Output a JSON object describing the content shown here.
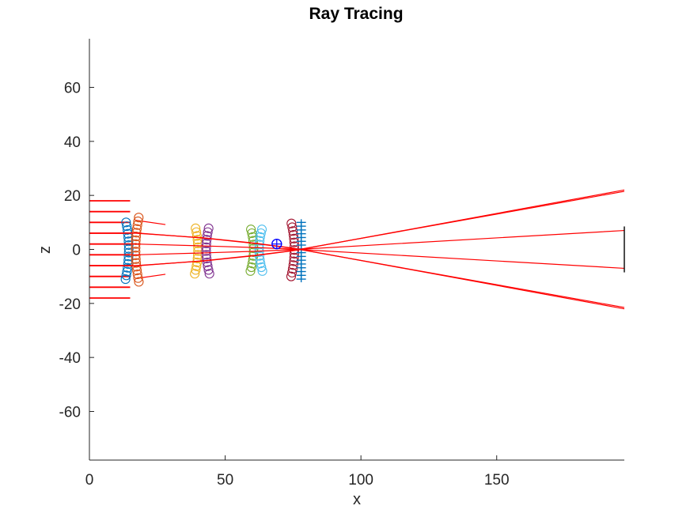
{
  "chart_data": {
    "type": "line",
    "title": "Ray Tracing",
    "xlabel": "x",
    "ylabel": "z",
    "xlim": [
      0,
      197
    ],
    "ylim": [
      -78,
      78
    ],
    "xticks": [
      0,
      50,
      100,
      150
    ],
    "yticks": [
      -60,
      -40,
      -20,
      0,
      20,
      40,
      60
    ],
    "grid": false,
    "colors": {
      "ray": "#ff0000",
      "lens1_front": "#0072bd",
      "lens1_back": "#d95319",
      "lens2_front": "#edb120",
      "lens2_back": "#7e2f8e",
      "lens3_front": "#77ac30",
      "lens3_back": "#4dbeee",
      "lens4_front": "#a2142f",
      "image_plane_marks": "#0072bd",
      "focus_marker": "#0000ff",
      "detector": "#000000"
    },
    "incoming_rays": [
      {
        "z": 18,
        "x_end": 15
      },
      {
        "z": 14,
        "x_end": 15
      },
      {
        "z": 10,
        "x_end": 15
      },
      {
        "z": 6,
        "x_end": 15
      },
      {
        "z": 2,
        "x_end": 15
      },
      {
        "z": -2,
        "x_end": 15
      },
      {
        "z": -6,
        "x_end": 15
      },
      {
        "z": -10,
        "x_end": 15
      },
      {
        "z": -14,
        "x_end": 15
      },
      {
        "z": -18,
        "x_end": 15
      }
    ],
    "deflected_rays": [
      {
        "x": [
          17,
          28
        ],
        "z": [
          10.8,
          9.2
        ]
      },
      {
        "x": [
          17,
          28
        ],
        "z": [
          -10.8,
          -9.2
        ]
      }
    ],
    "traced_rays": [
      {
        "x": [
          0,
          17,
          42,
          61,
          75,
          197
        ],
        "z": [
          6,
          6.1,
          4.2,
          2.2,
          0.4,
          -21.5
        ]
      },
      {
        "x": [
          0,
          17,
          42,
          61,
          75,
          197
        ],
        "z": [
          -6,
          -6.1,
          -4.2,
          -2.2,
          -0.4,
          21.5
        ]
      },
      {
        "x": [
          0,
          17,
          42,
          61,
          75,
          197
        ],
        "z": [
          2,
          2.0,
          1.3,
          0.7,
          0.1,
          -7.0
        ]
      },
      {
        "x": [
          0,
          17,
          42,
          61,
          75,
          197
        ],
        "z": [
          -2,
          -2.0,
          -1.3,
          -0.7,
          -0.1,
          7.0
        ]
      },
      {
        "x": [
          0,
          17,
          42,
          61,
          75,
          197
        ],
        "z": [
          6,
          6.0,
          4.3,
          2.3,
          0.5,
          -22.0
        ]
      },
      {
        "x": [
          0,
          17,
          42,
          61,
          75,
          197
        ],
        "z": [
          -6,
          -6.0,
          -4.3,
          -2.3,
          -0.5,
          22.0
        ]
      }
    ],
    "lens_surfaces": [
      {
        "name": "L1 front",
        "color_key": "lens1_front",
        "x": 14.5,
        "half_height": 11,
        "marker": "circle"
      },
      {
        "name": "L1 back",
        "color_key": "lens1_back",
        "x": 17,
        "half_height": 12,
        "marker": "circle"
      },
      {
        "name": "L2 front",
        "color_key": "lens2_front",
        "x": 40,
        "half_height": 9,
        "marker": "circle"
      },
      {
        "name": "L2 back",
        "color_key": "lens2_back",
        "x": 43,
        "half_height": 9,
        "marker": "circle"
      },
      {
        "name": "L3 front",
        "color_key": "lens3_front",
        "x": 60.5,
        "half_height": 8,
        "marker": "circle"
      },
      {
        "name": "L3 back",
        "color_key": "lens3_back",
        "x": 62.5,
        "half_height": 8,
        "marker": "circle"
      },
      {
        "name": "L4 front",
        "color_key": "lens4_front",
        "x": 75.5,
        "half_height": 10,
        "marker": "circle"
      },
      {
        "name": "Image plane",
        "color_key": "image_plane_marks",
        "x": 78,
        "half_height": 11,
        "marker": "plus"
      }
    ],
    "focus_point": {
      "x": 69,
      "z": 2
    },
    "detector": {
      "x": 197,
      "z": [
        -8.5,
        8.5
      ]
    }
  }
}
